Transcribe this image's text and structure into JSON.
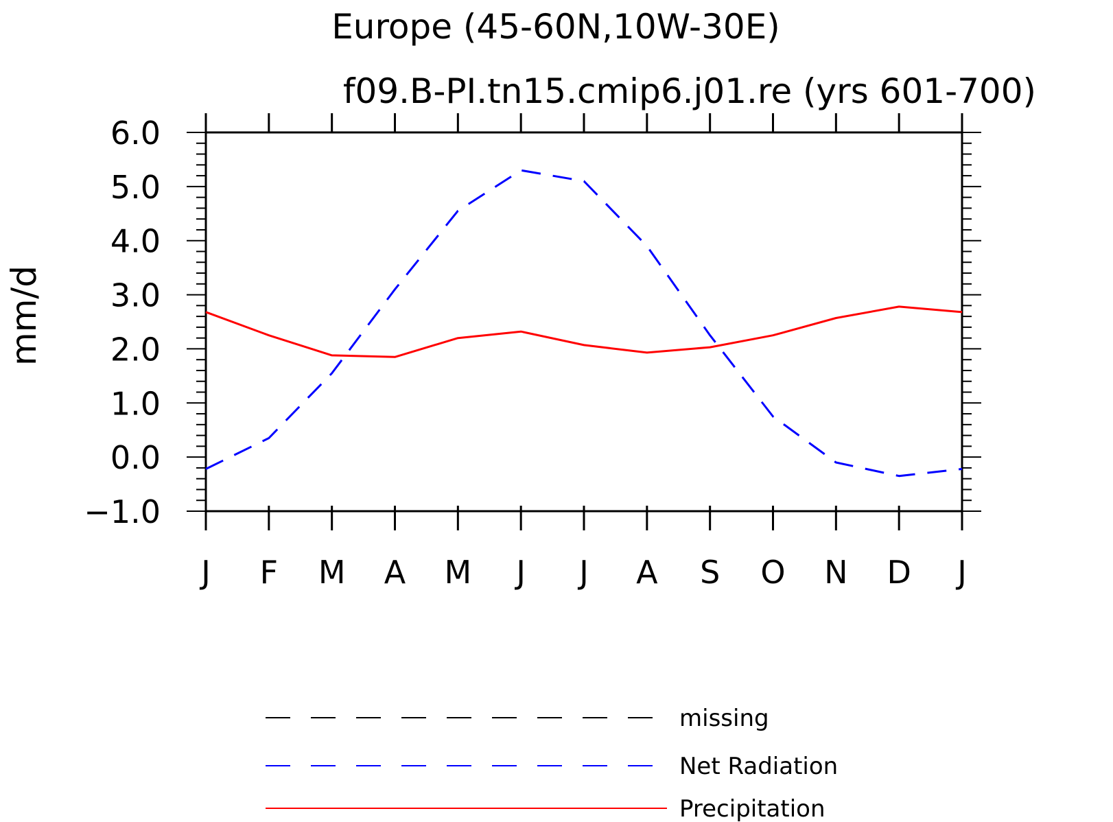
{
  "chart_data": {
    "type": "line",
    "title": "Europe (45-60N,10W-30E)",
    "subtitle": "f09.B-PI.tn15.cmip6.j01.re (yrs 601-700)",
    "xlabel": "",
    "ylabel": "mm/d",
    "x": [
      "J",
      "F",
      "M",
      "A",
      "M",
      "J",
      "J",
      "A",
      "S",
      "O",
      "N",
      "D",
      "J"
    ],
    "ylim": [
      -1.0,
      6.0
    ],
    "yticks": [
      "-1.0",
      "0.0",
      "1.0",
      "2.0",
      "3.0",
      "4.0",
      "5.0",
      "6.0"
    ],
    "series": [
      {
        "name": "Net Radiation",
        "color": "#0000ff",
        "dash": "dashed",
        "values": [
          -0.22,
          0.35,
          1.55,
          3.1,
          4.55,
          5.3,
          5.1,
          3.9,
          2.25,
          0.75,
          -0.1,
          -0.35,
          -0.22
        ]
      },
      {
        "name": "Precipitation",
        "color": "#ff0000",
        "dash": "solid",
        "values": [
          2.68,
          2.25,
          1.88,
          1.85,
          2.2,
          2.32,
          2.07,
          1.93,
          2.03,
          2.25,
          2.57,
          2.78,
          2.68
        ]
      }
    ],
    "legend": [
      {
        "label": "missing",
        "color": "#000000",
        "dash": "dashed"
      },
      {
        "label": "Net Radiation",
        "color": "#0000ff",
        "dash": "dashed"
      },
      {
        "label": "Precipitation",
        "color": "#ff0000",
        "dash": "solid"
      }
    ],
    "legend_position": "bottom",
    "grid": false
  }
}
